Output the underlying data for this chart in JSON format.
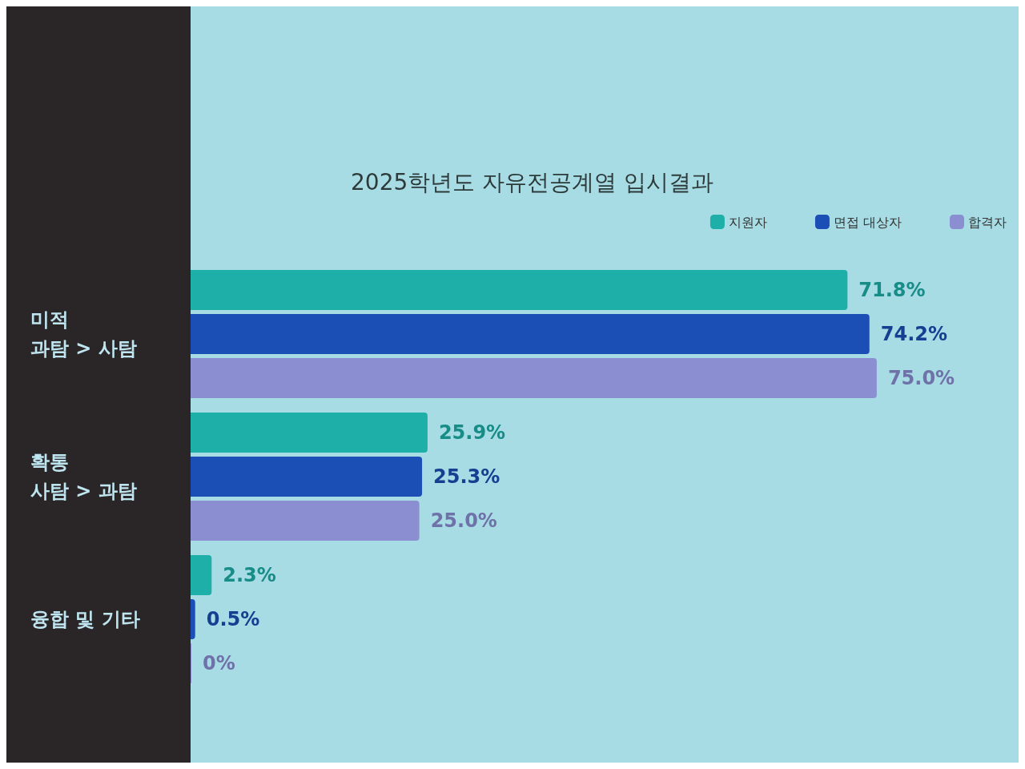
{
  "chart_data": {
    "type": "bar",
    "orientation": "horizontal",
    "title": "2025학년도 자유전공계열 입시결과",
    "categories": [
      "미적\n과탐 > 사탐",
      "확통\n사탐 > 과탐",
      "융합 및 기타"
    ],
    "series": [
      {
        "name": "지원자",
        "color": "#1eafa9",
        "values": [
          71.8,
          25.9,
          2.3
        ],
        "value_labels": [
          "71.8%",
          "25.9%",
          "2.3%"
        ]
      },
      {
        "name": "면접 대상자",
        "color": "#1c4fb5",
        "values": [
          74.2,
          25.3,
          0.5
        ],
        "value_labels": [
          "74.2%",
          "25.3%",
          "0.5%"
        ]
      },
      {
        "name": "합격자",
        "color": "#8b8fd2",
        "values": [
          75.0,
          25.0,
          0
        ],
        "value_labels": [
          "75.0%",
          "25.0%",
          "0%"
        ]
      }
    ],
    "legend": "top right"
  }
}
